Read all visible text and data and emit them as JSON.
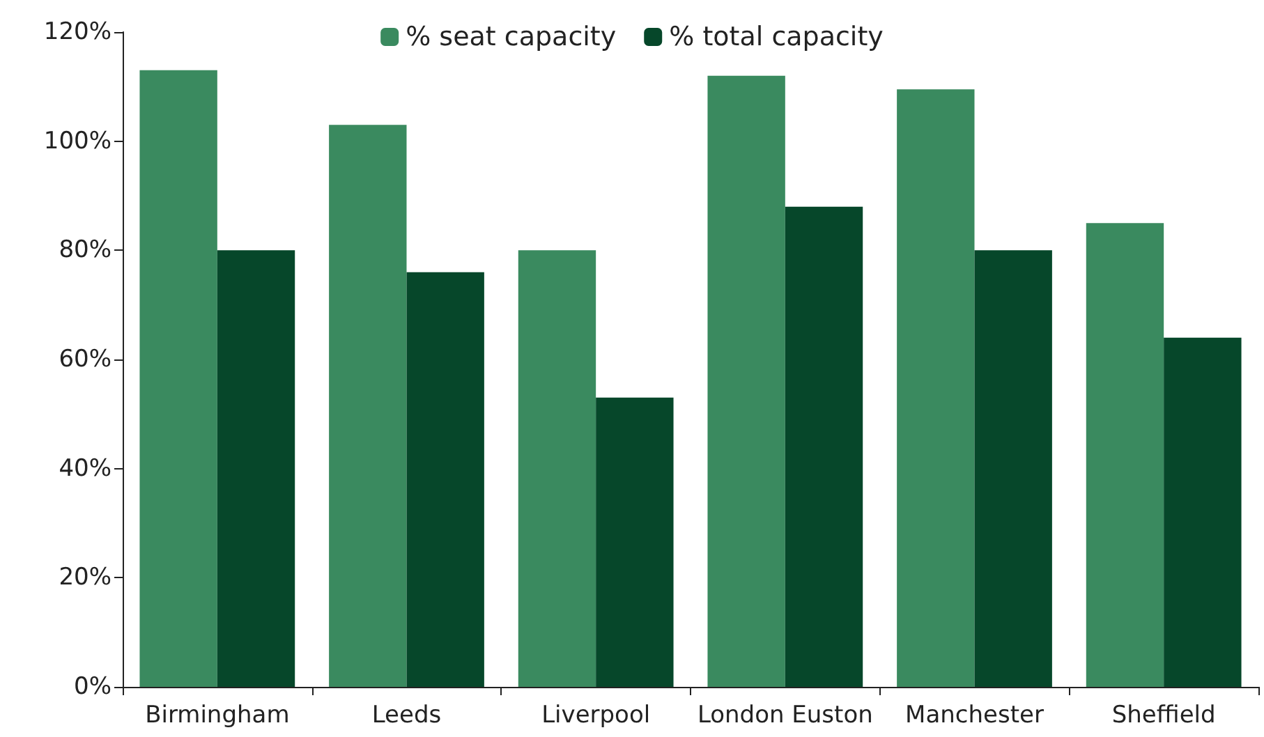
{
  "chart_data": {
    "type": "bar",
    "categories": [
      "Birmingham",
      "Leeds",
      "Liverpool",
      "London Euston",
      "Manchester",
      "Sheffield"
    ],
    "series": [
      {
        "name": "% seat capacity",
        "color": "#3a8a5f",
        "values": [
          113,
          103,
          80,
          112,
          109.5,
          85
        ]
      },
      {
        "name": "% total capacity",
        "color": "#06472a",
        "values": [
          80,
          76,
          53,
          88,
          80,
          64
        ]
      }
    ],
    "ylim": [
      0,
      120
    ],
    "yticks": [
      {
        "value": 0,
        "label": "0%"
      },
      {
        "value": 20,
        "label": "20%"
      },
      {
        "value": 40,
        "label": "40%"
      },
      {
        "value": 60,
        "label": "60%"
      },
      {
        "value": 80,
        "label": "80%"
      },
      {
        "value": 100,
        "label": "100%"
      },
      {
        "value": 120,
        "label": "120%"
      }
    ],
    "grid": false,
    "legend": "top"
  }
}
